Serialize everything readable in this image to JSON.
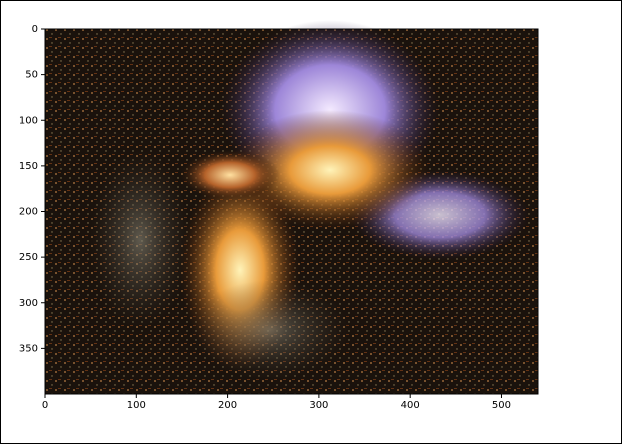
{
  "chart_data": {
    "type": "image",
    "xlim": [
      0,
      540
    ],
    "ylim": [
      0,
      400
    ],
    "y_inverted": true,
    "xticks": [
      0,
      100,
      200,
      300,
      400,
      500
    ],
    "yticks": [
      0,
      50,
      100,
      150,
      200,
      250,
      300,
      350
    ]
  }
}
